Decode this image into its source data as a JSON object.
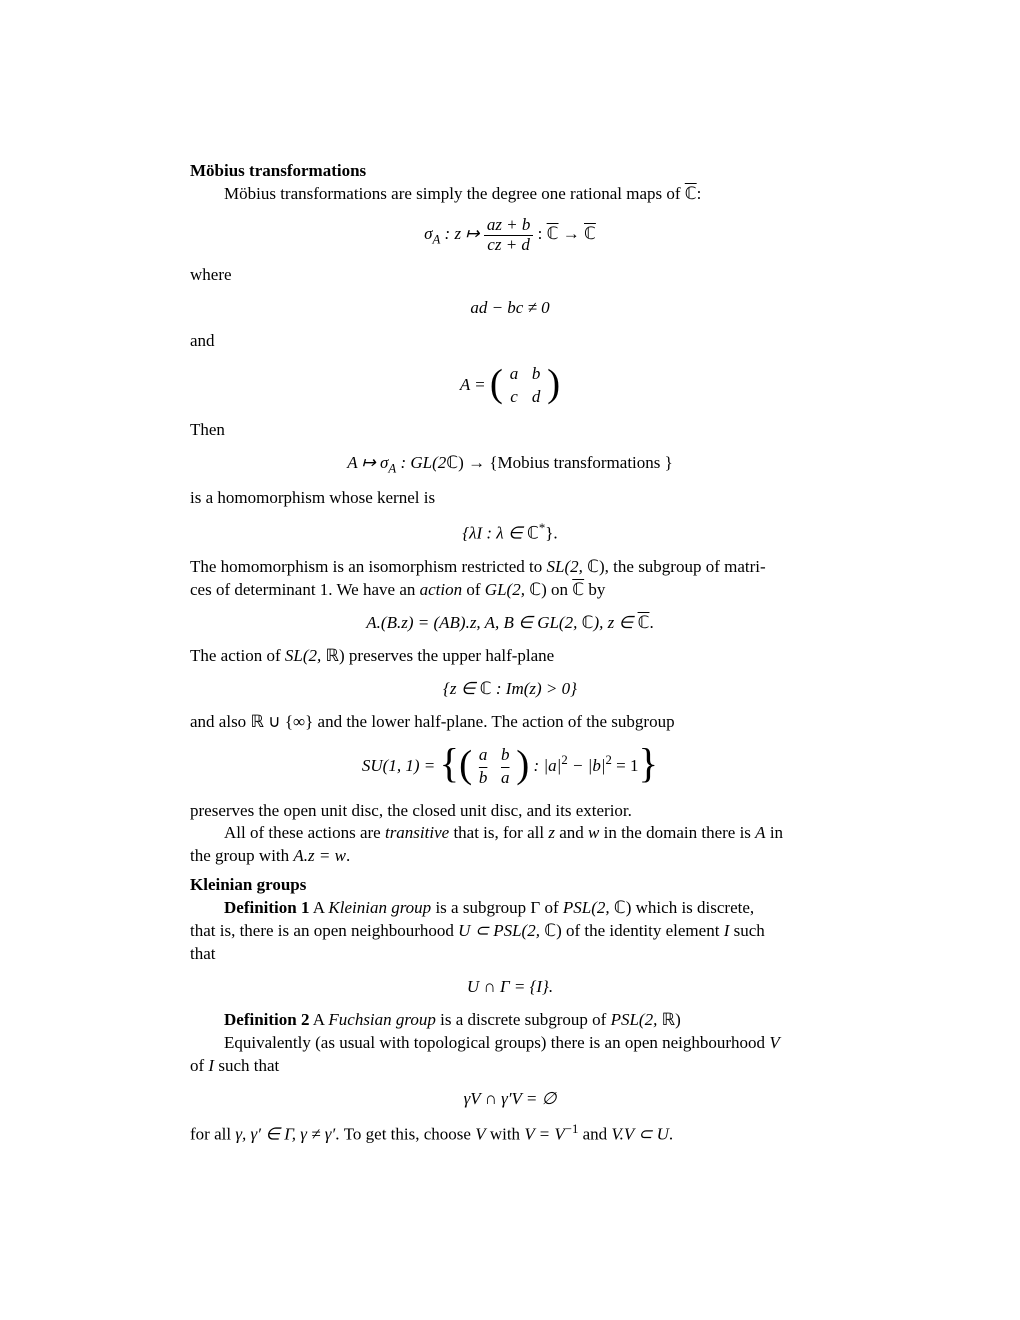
{
  "section1": {
    "title": "Möbius transformations",
    "intro": "Möbius transformations are simply the degree one rational maps of ",
    "intro_tail": ":",
    "eq1_lhs": "σ",
    "eq1_sub": "A",
    "eq1_colon": " : z ↦ ",
    "eq1_num": "az + b",
    "eq1_den": "cz + d",
    "eq1_colon2": " : ",
    "eq1_arrow": " → ",
    "where": "where",
    "eq2": "ad − bc ≠ 0",
    "and": "and",
    "eq3_lhs": "A = ",
    "eq3_a": "a",
    "eq3_b": "b",
    "eq3_c": "c",
    "eq3_d": "d",
    "then": "Then",
    "eq4_lhs": "A ↦ σ",
    "eq4_sub": "A",
    "eq4_mid": " : GL(2",
    "eq4_c": "ℂ",
    "eq4_rhs": ") → {Mobius transformations }",
    "homo": "is a homomorphism whose kernel is",
    "eq5_l": "{λI : λ ∈ ",
    "eq5_c": "ℂ",
    "eq5_star": "*",
    "eq5_r": "}.",
    "p6a": "The homomorphism is an isomorphism restricted to ",
    "p6_sl": "SL(2, ",
    "p6_c": "ℂ",
    "p6_slr": ")",
    "p6b": ", the subgroup of matri-",
    "p6c": "ces of determinant 1.   We have an ",
    "p6_action": "action",
    "p6d": " of ",
    "p6_gl": "GL(2, ",
    "p6_glr": ")",
    "p6e": " on ",
    "p6f": " by",
    "eq6_lhs": "A.(B.z) = (AB).z,  A, B ∈ GL(2, ",
    "eq6_c": "ℂ",
    "eq6_mid": "),  z ∈ ",
    "eq6_end": ".",
    "p7a": "The action of ",
    "p7_sl": "SL(2, ",
    "p7_r": "ℝ",
    "p7_slr": ")",
    "p7b": " preserves the upper half-plane",
    "eq7_l": "{z ∈ ",
    "eq7_c": "ℂ",
    "eq7_r": " : Im(z) > 0}",
    "p8a": " and also ",
    "p8_r": "ℝ",
    "p8b": " ∪ {∞} and the lower half-plane. The action of the subgroup",
    "eq8_lhs": "SU(1, 1) = ",
    "eq8_a": "a",
    "eq8_b": "b",
    "eq8_bb": "b̄",
    "eq8_ab": "ā",
    "eq8_cond": " : |a|",
    "eq8_sq2": "2",
    "eq8_minus": " − |b|",
    "eq8_eq1": " = 1",
    "p9": "preserves the open unit disc, the closed unit disc, and its exterior.",
    "p10a": "All of these actions are ",
    "p10_tr": "transitive",
    "p10b": " that is, for all ",
    "p10_z": "z",
    "p10c": " and ",
    "p10_w": "w",
    "p10d": " in the domain there is ",
    "p10_A": "A",
    "p10e": " in",
    "p10f": "the group with ",
    "p10_eq": "A.z = w",
    "p10g": "."
  },
  "section2": {
    "title": "Kleinian groups",
    "def1": "Definition 1",
    "def1a": " A ",
    "def1_kl": "Kleinian group",
    "def1b": " is a subgroup ",
    "def1_g": "Γ",
    "def1c": " of ",
    "def1_psl": "PSL(2, ",
    "def1_c": "ℂ",
    "def1_pslr": ")",
    "def1d": " which is discrete,",
    "def1e": "that is, there is an open neighbourhood ",
    "def1_u": "U ⊂ PSL(2, ",
    "def1_ur": ")",
    "def1f": " of the identity element ",
    "def1_I": "I",
    "def1g": " such",
    "def1h": "that",
    "eq_d1": "U ∩ Γ = {I}.",
    "def2": "Definition 2",
    "def2a": " A ",
    "def2_fg": "Fuchsian group",
    "def2b": " is a discrete subgroup of ",
    "def2_psl": "PSL(2, ",
    "def2_r": "ℝ",
    "def2_pslr": ")",
    "p_eq_a": "Equivalently (as usual with topological groups) there is an open neighbourhood ",
    "p_eq_V": "V",
    "p_eq_b": "of ",
    "p_eq_I": "I",
    "p_eq_c": " such that",
    "eq_gv": "γV ∩ γ′V = ∅",
    "p_last_a": "for all ",
    "p_last_gg": "γ, γ′ ∈ Γ, γ ≠ γ′",
    "p_last_b": ". To get this, choose ",
    "p_last_V": "V",
    "p_last_c": " with ",
    "p_last_eq": "V = V",
    "p_last_exp": "−1",
    "p_last_d": " and ",
    "p_last_vvu": "V.V ⊂ U",
    "p_last_e": "."
  },
  "glyphs": {
    "Cbar": "ℂ"
  }
}
